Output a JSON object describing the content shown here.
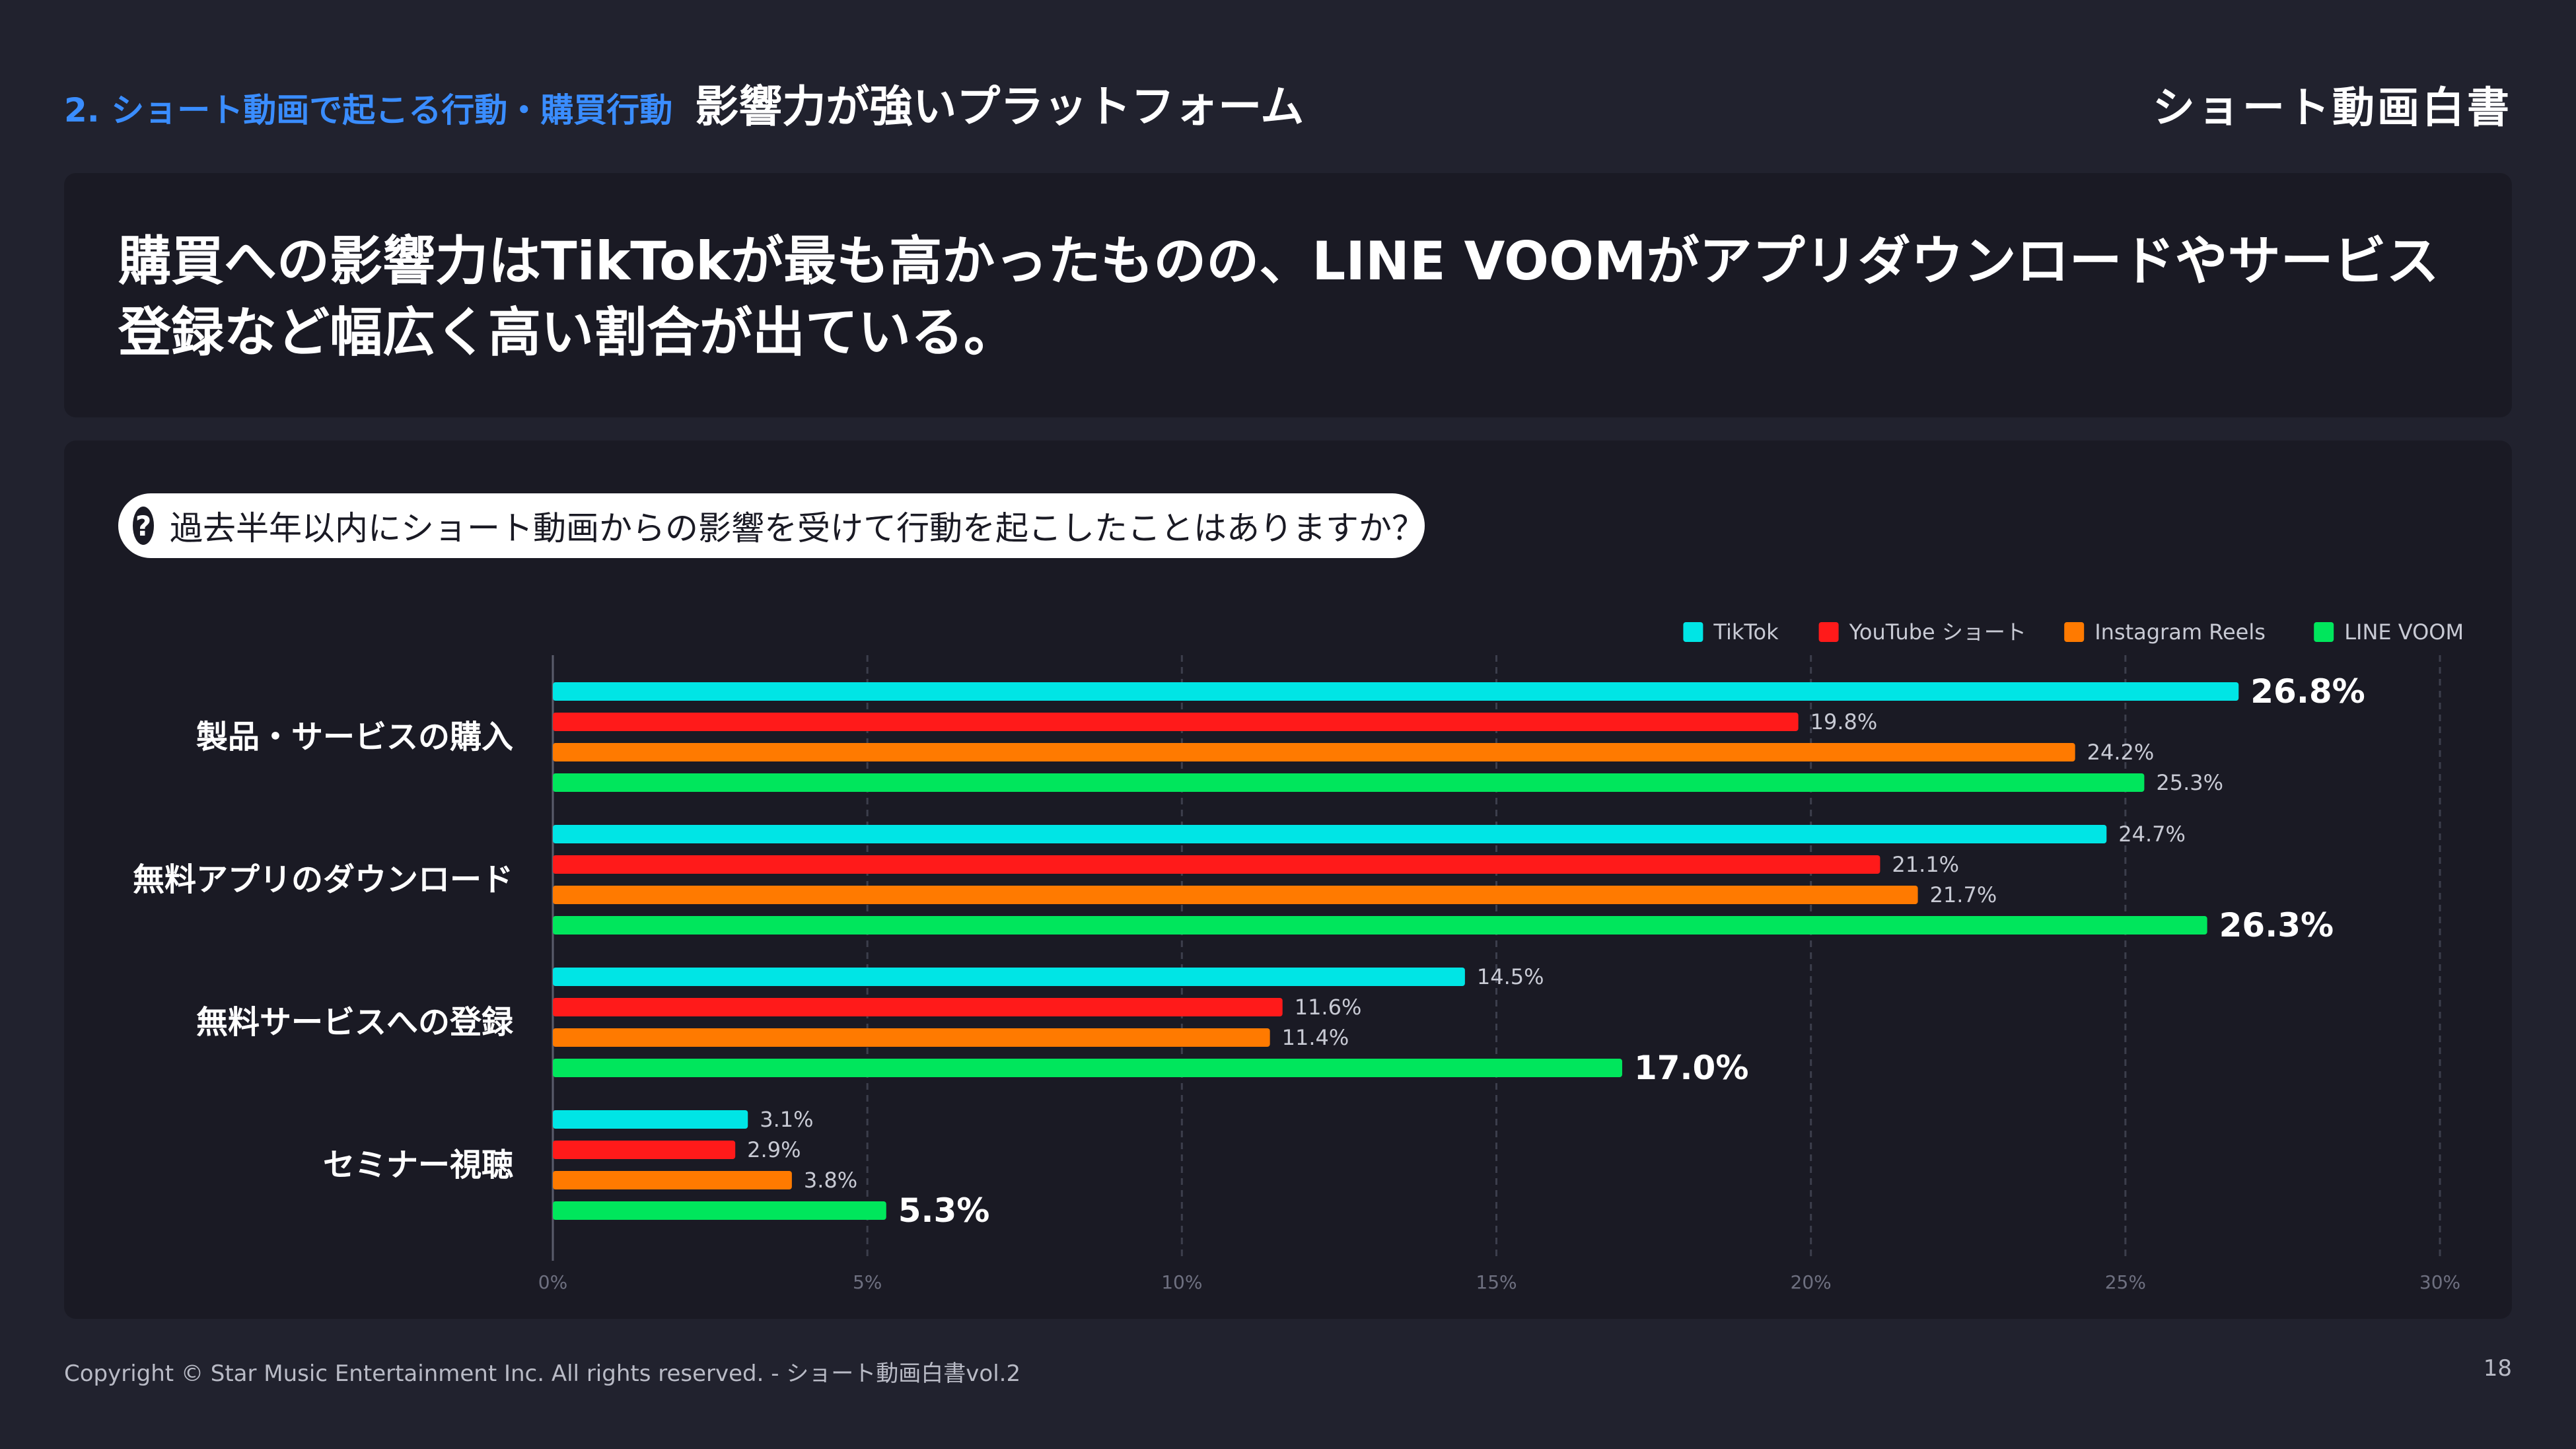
{
  "header": {
    "section_label": "2. ショート動画で起こる行動・購買行動",
    "page_topic": "影響力が強いプラットフォーム",
    "brand_logo": "ショート動画白書"
  },
  "headline": "購買への影響力はTikTokが最も高かったものの、LINE VOOMがアプリダウンロードやサービス登録など幅広く高い割合が出ている。",
  "question": {
    "icon": "question-icon",
    "text": "過去半年以内にショート動画からの影響を受けて行動を起こしたことはありますか？"
  },
  "chart_data": {
    "type": "bar",
    "orientation": "horizontal",
    "categories": [
      "製品・サービスの購入",
      "無料アプリのダウンロード",
      "無料サービスへの登録",
      "セミナー視聴"
    ],
    "series": [
      {
        "name": "TikTok",
        "color": "#00e5e5",
        "values": [
          26.8,
          24.7,
          14.5,
          3.1
        ]
      },
      {
        "name": "YouTube ショート",
        "color": "#ff1a1a",
        "values": [
          19.8,
          21.1,
          11.6,
          2.9
        ]
      },
      {
        "name": "Instagram Reels",
        "color": "#ff7a00",
        "values": [
          24.2,
          21.7,
          11.4,
          3.8
        ]
      },
      {
        "name": "LINE VOOM",
        "color": "#00e65c",
        "values": [
          25.3,
          26.3,
          17.0,
          5.3
        ]
      }
    ],
    "xlim": [
      0,
      30
    ],
    "xticks": [
      "0%",
      "5%",
      "10%",
      "15%",
      "20%",
      "25%",
      "30%"
    ],
    "value_suffix": "%",
    "highlighted": [
      [
        0,
        0
      ],
      [
        1,
        3
      ],
      [
        2,
        3
      ],
      [
        3,
        3
      ]
    ],
    "legend_position": "top-right",
    "grid": "vertical-dashed"
  },
  "footer": {
    "copyright": "Copyright © Star Music Entertainment Inc. All rights reserved. - ショート動画白書vol.2",
    "page_number": "18"
  }
}
